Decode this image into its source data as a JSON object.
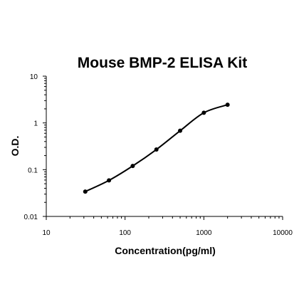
{
  "chart_data": {
    "type": "line",
    "title": "Mouse BMP-2 ELISA Kit",
    "xlabel": "Concentration(pg/ml)",
    "ylabel": "O.D.",
    "xscale": "log",
    "yscale": "log",
    "xlim": [
      10,
      10000
    ],
    "ylim": [
      0.01,
      10
    ],
    "xticks": [
      10,
      100,
      1000,
      10000
    ],
    "xtick_labels": [
      "10",
      "100",
      "1000",
      "10000"
    ],
    "yticks": [
      0.01,
      0.1,
      1,
      10
    ],
    "ytick_labels": [
      "0.01",
      "0.1",
      "1",
      "10"
    ],
    "grid": false,
    "legend": "none",
    "series": [
      {
        "x": [
          31.25,
          62.5,
          125,
          250,
          500,
          1000,
          2000
        ],
        "y": [
          0.034,
          0.059,
          0.12,
          0.27,
          0.68,
          1.65,
          2.45
        ],
        "color": "#000000",
        "markers": true
      }
    ]
  }
}
